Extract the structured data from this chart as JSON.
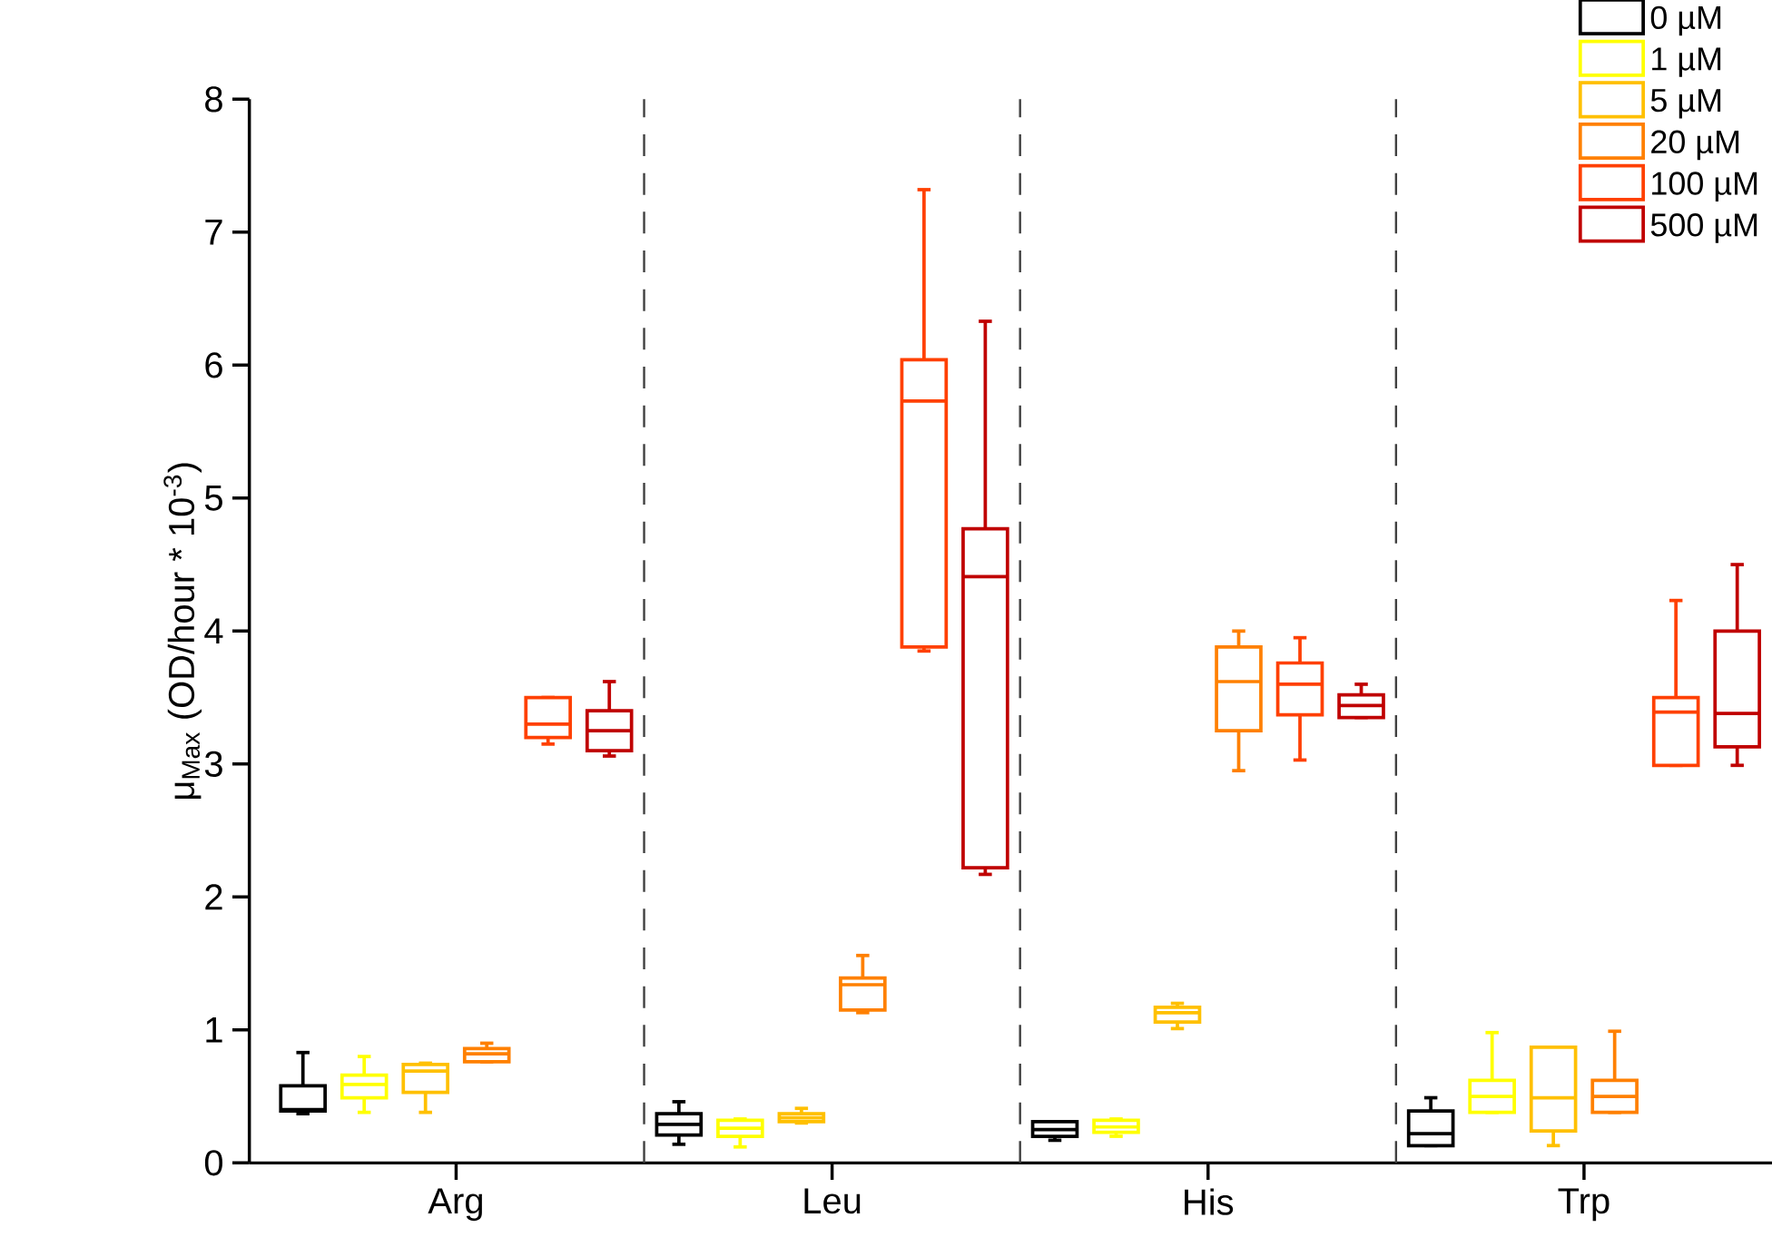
{
  "chart_data": {
    "type": "box",
    "ylabel": "μ$_{Max}$  (OD/hour * 10$^{-3}$)",
    "categories": [
      "Arg",
      "Leu",
      "His",
      "Trp"
    ],
    "ylim": [
      0,
      8
    ],
    "yticks": [
      0,
      1,
      2,
      3,
      4,
      5,
      6,
      7,
      8
    ],
    "legend": "top right",
    "series": [
      {
        "name": "0 µM",
        "color": "#000000",
        "boxes": [
          {
            "low": 0.37,
            "q1": 0.39,
            "median": 0.4,
            "q3": 0.58,
            "high": 0.83
          },
          {
            "low": 0.14,
            "q1": 0.21,
            "median": 0.29,
            "q3": 0.37,
            "high": 0.46
          },
          {
            "low": 0.17,
            "q1": 0.2,
            "median": 0.25,
            "q3": 0.31,
            "high": 0.31
          },
          {
            "low": 0.13,
            "q1": 0.13,
            "median": 0.22,
            "q3": 0.39,
            "high": 0.49
          }
        ]
      },
      {
        "name": "1 µM",
        "color": "#ffff00",
        "boxes": [
          {
            "low": 0.38,
            "q1": 0.49,
            "median": 0.59,
            "q3": 0.66,
            "high": 0.8
          },
          {
            "low": 0.12,
            "q1": 0.2,
            "median": 0.26,
            "q3": 0.32,
            "high": 0.33
          },
          {
            "low": 0.2,
            "q1": 0.23,
            "median": 0.27,
            "q3": 0.32,
            "high": 0.33
          },
          {
            "low": 0.38,
            "q1": 0.38,
            "median": 0.5,
            "q3": 0.62,
            "high": 0.98
          }
        ]
      },
      {
        "name": "5 µM",
        "color": "#ffc000",
        "boxes": [
          {
            "low": 0.38,
            "q1": 0.53,
            "median": 0.69,
            "q3": 0.74,
            "high": 0.75
          },
          {
            "low": 0.3,
            "q1": 0.31,
            "median": 0.34,
            "q3": 0.37,
            "high": 0.41
          },
          {
            "low": 1.01,
            "q1": 1.06,
            "median": 1.13,
            "q3": 1.17,
            "high": 1.2
          },
          {
            "low": 0.13,
            "q1": 0.24,
            "median": 0.49,
            "q3": 0.87,
            "high": 0.87
          }
        ]
      },
      {
        "name": "20 µM",
        "color": "#ff8000",
        "boxes": [
          {
            "low": 0.76,
            "q1": 0.76,
            "median": 0.82,
            "q3": 0.86,
            "high": 0.9
          },
          {
            "low": 1.13,
            "q1": 1.15,
            "median": 1.34,
            "q3": 1.39,
            "high": 1.56
          },
          {
            "low": 2.95,
            "q1": 3.25,
            "median": 3.62,
            "q3": 3.88,
            "high": 4.0
          },
          {
            "low": 0.38,
            "q1": 0.38,
            "median": 0.5,
            "q3": 0.62,
            "high": 0.99
          }
        ]
      },
      {
        "name": "100 µM",
        "color": "#ff4000",
        "boxes": [
          {
            "low": 3.15,
            "q1": 3.2,
            "median": 3.3,
            "q3": 3.5,
            "high": 3.5
          },
          {
            "low": 3.85,
            "q1": 3.88,
            "median": 5.73,
            "q3": 6.04,
            "high": 7.32
          },
          {
            "low": 3.03,
            "q1": 3.37,
            "median": 3.6,
            "q3": 3.76,
            "high": 3.95
          },
          {
            "low": 2.99,
            "q1": 2.99,
            "median": 3.39,
            "q3": 3.5,
            "high": 4.23
          }
        ]
      },
      {
        "name": "500 µM",
        "color": "#c00000",
        "boxes": [
          {
            "low": 3.06,
            "q1": 3.1,
            "median": 3.25,
            "q3": 3.4,
            "high": 3.62
          },
          {
            "low": 2.17,
            "q1": 2.22,
            "median": 4.41,
            "q3": 4.77,
            "high": 6.33
          },
          {
            "low": 3.35,
            "q1": 3.35,
            "median": 3.44,
            "q3": 3.52,
            "high": 3.6
          },
          {
            "low": 2.99,
            "q1": 3.13,
            "median": 3.38,
            "q3": 4.0,
            "high": 4.5
          }
        ]
      }
    ]
  }
}
